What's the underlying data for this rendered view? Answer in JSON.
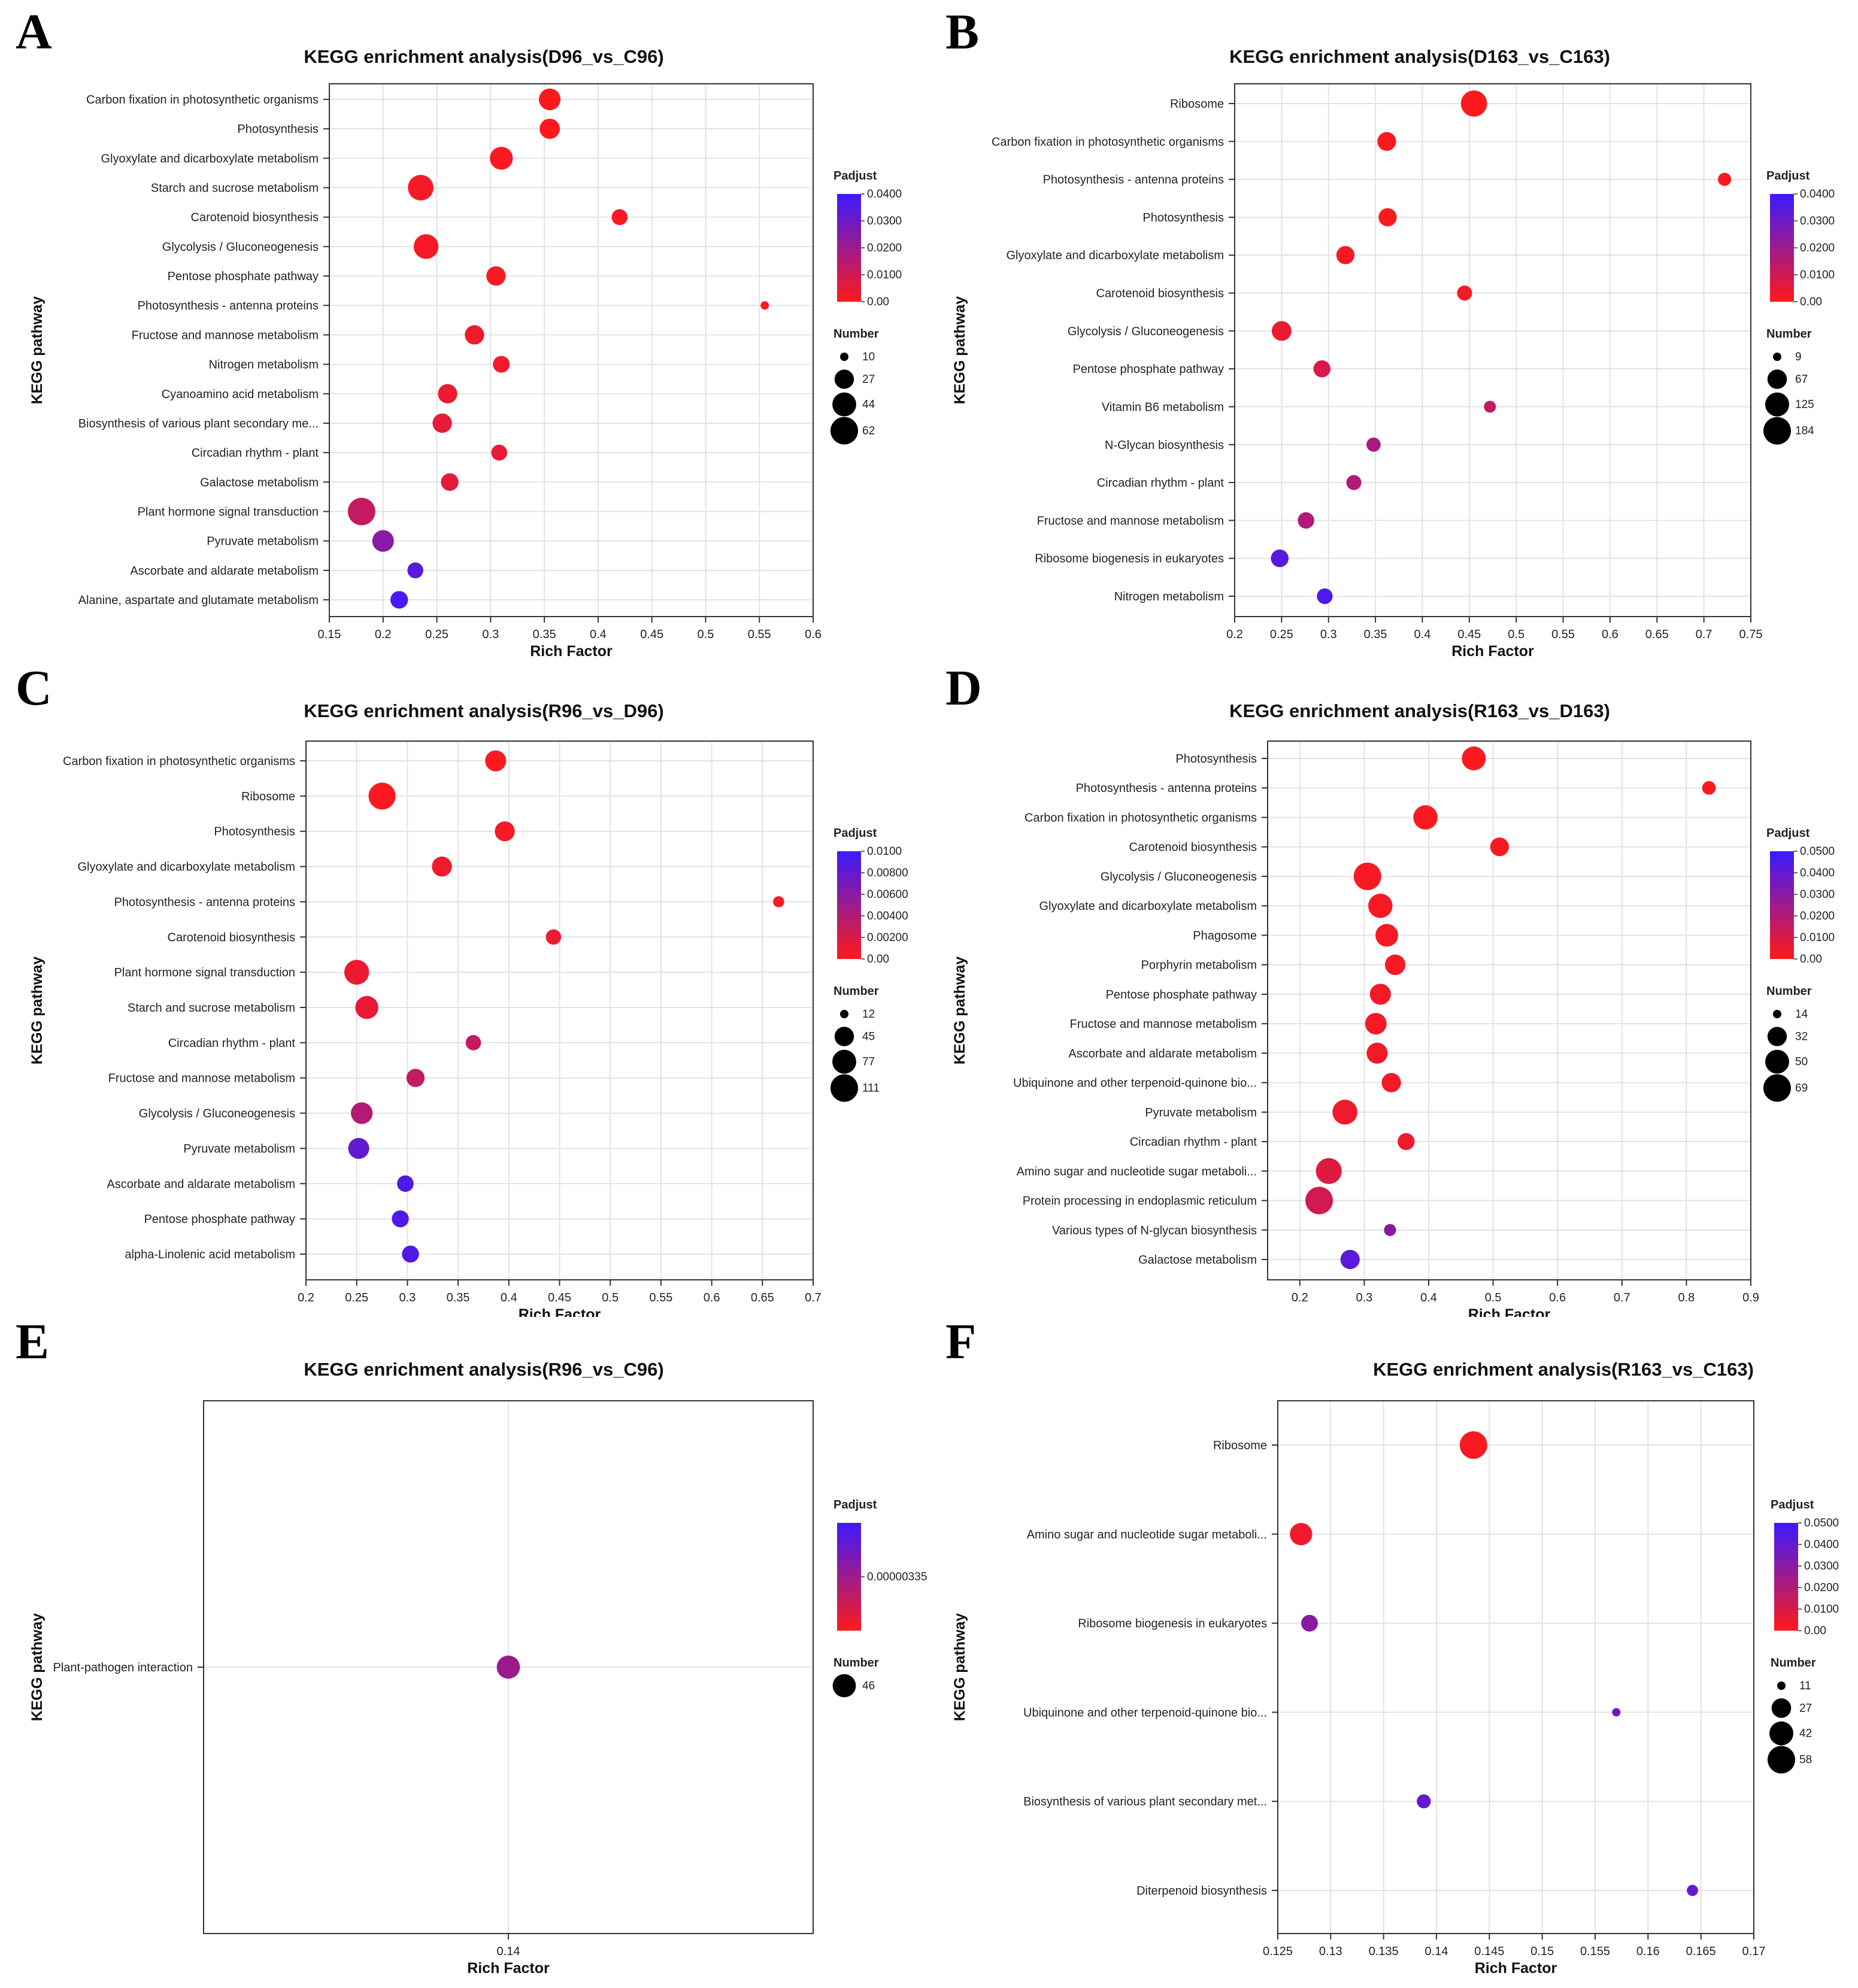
{
  "chart_data": [
    {
      "panel": "A",
      "type": "scatter",
      "title": "KEGG enrichment analysis(D96_vs_C96)",
      "xlabel": "Rich Factor",
      "ylabel": "KEGG pathway",
      "xlim": [
        0.15,
        0.6
      ],
      "xticks": [
        "0.15",
        "0.2",
        "0.25",
        "0.3",
        "0.35",
        "0.4",
        "0.45",
        "0.5",
        "0.55",
        "0.6"
      ],
      "grid": true,
      "legend_position": "right",
      "padjust_title": "Padjust",
      "padjust_ticks": [
        "0.0400",
        "0.0300",
        "0.0200",
        "0.0100",
        "0.00"
      ],
      "padjust_range": [
        0,
        0.04
      ],
      "number_title": "Number",
      "number_ticks": [
        "10",
        "27",
        "44",
        "62"
      ],
      "number_range": [
        10,
        62
      ],
      "points": [
        {
          "pathway": "Carbon fixation in photosynthetic organisms",
          "x": 0.355,
          "number": 35,
          "padjust": 0.0005
        },
        {
          "pathway": "Photosynthesis",
          "x": 0.355,
          "number": 30,
          "padjust": 0.0005
        },
        {
          "pathway": "Glyoxylate and dicarboxylate metabolism",
          "x": 0.31,
          "number": 40,
          "padjust": 0.001
        },
        {
          "pathway": "Starch and sucrose metabolism",
          "x": 0.235,
          "number": 52,
          "padjust": 0.002
        },
        {
          "pathway": "Carotenoid biosynthesis",
          "x": 0.42,
          "number": 18,
          "padjust": 0.001
        },
        {
          "pathway": "Glycolysis / Gluconeogenesis",
          "x": 0.24,
          "number": 48,
          "padjust": 0.002
        },
        {
          "pathway": "Pentose phosphate pathway",
          "x": 0.305,
          "number": 27,
          "padjust": 0.002
        },
        {
          "pathway": "Photosynthesis - antenna proteins",
          "x": 0.555,
          "number": 10,
          "padjust": 0.001
        },
        {
          "pathway": "Fructose and mannose metabolism",
          "x": 0.285,
          "number": 27,
          "padjust": 0.003
        },
        {
          "pathway": "Nitrogen metabolism",
          "x": 0.31,
          "number": 20,
          "padjust": 0.003
        },
        {
          "pathway": "Cyanoamino acid metabolism",
          "x": 0.26,
          "number": 27,
          "padjust": 0.004
        },
        {
          "pathway": "Biosynthesis of various plant secondary me...",
          "x": 0.255,
          "number": 27,
          "padjust": 0.005
        },
        {
          "pathway": "Circadian rhythm - plant",
          "x": 0.308,
          "number": 18,
          "padjust": 0.005
        },
        {
          "pathway": "Galactose metabolism",
          "x": 0.262,
          "number": 22,
          "padjust": 0.006
        },
        {
          "pathway": "Plant hormone signal transduction",
          "x": 0.18,
          "number": 62,
          "padjust": 0.012
        },
        {
          "pathway": "Pyruvate metabolism",
          "x": 0.2,
          "number": 35,
          "padjust": 0.024
        },
        {
          "pathway": "Ascorbate and aldarate metabolism",
          "x": 0.23,
          "number": 18,
          "padjust": 0.034
        },
        {
          "pathway": "Alanine, aspartate and glutamate metabolism",
          "x": 0.215,
          "number": 22,
          "padjust": 0.038
        }
      ]
    },
    {
      "panel": "B",
      "type": "scatter",
      "title": "KEGG enrichment analysis(D163_vs_C163)",
      "xlabel": "Rich Factor",
      "ylabel": "KEGG pathway",
      "xlim": [
        0.2,
        0.75
      ],
      "xticks": [
        "0.2",
        "0.25",
        "0.3",
        "0.35",
        "0.4",
        "0.45",
        "0.5",
        "0.55",
        "0.6",
        "0.65",
        "0.7",
        "0.75"
      ],
      "grid": true,
      "legend_position": "right",
      "padjust_title": "Padjust",
      "padjust_ticks": [
        "0.0400",
        "0.0300",
        "0.0200",
        "0.0100",
        "0.00"
      ],
      "padjust_range": [
        0,
        0.04
      ],
      "number_title": "Number",
      "number_ticks": [
        "9",
        "67",
        "125",
        "184"
      ],
      "number_range": [
        9,
        184
      ],
      "points": [
        {
          "pathway": "Ribosome",
          "x": 0.455,
          "number": 160,
          "padjust": 0.0005
        },
        {
          "pathway": "Carbon fixation in photosynthetic organisms",
          "x": 0.362,
          "number": 60,
          "padjust": 0.001
        },
        {
          "pathway": "Photosynthesis - antenna proteins",
          "x": 0.722,
          "number": 20,
          "padjust": 0.001
        },
        {
          "pathway": "Photosynthesis",
          "x": 0.363,
          "number": 55,
          "padjust": 0.001
        },
        {
          "pathway": "Glyoxylate and dicarboxylate metabolism",
          "x": 0.318,
          "number": 55,
          "padjust": 0.002
        },
        {
          "pathway": "Carotenoid biosynthesis",
          "x": 0.445,
          "number": 30,
          "padjust": 0.002
        },
        {
          "pathway": "Glycolysis / Gluconeogenesis",
          "x": 0.25,
          "number": 70,
          "padjust": 0.004
        },
        {
          "pathway": "Pentose phosphate pathway",
          "x": 0.293,
          "number": 45,
          "padjust": 0.008
        },
        {
          "pathway": "Vitamin B6 metabolism",
          "x": 0.472,
          "number": 15,
          "padjust": 0.013
        },
        {
          "pathway": "N-Glycan biosynthesis",
          "x": 0.348,
          "number": 25,
          "padjust": 0.018
        },
        {
          "pathway": "Circadian rhythm - plant",
          "x": 0.327,
          "number": 30,
          "padjust": 0.016
        },
        {
          "pathway": "Fructose and mannose metabolism",
          "x": 0.276,
          "number": 40,
          "padjust": 0.016
        },
        {
          "pathway": "Ribosome biogenesis in eukaryotes",
          "x": 0.248,
          "number": 50,
          "padjust": 0.034
        },
        {
          "pathway": "Nitrogen metabolism",
          "x": 0.296,
          "number": 35,
          "padjust": 0.036
        }
      ]
    },
    {
      "panel": "C",
      "type": "scatter",
      "title": "KEGG enrichment analysis(R96_vs_D96)",
      "xlabel": "Rich Factor",
      "ylabel": "KEGG pathway",
      "xlim": [
        0.2,
        0.7
      ],
      "xticks": [
        "0.2",
        "0.25",
        "0.3",
        "0.35",
        "0.4",
        "0.45",
        "0.5",
        "0.55",
        "0.6",
        "0.65",
        "0.7"
      ],
      "grid": true,
      "legend_position": "right",
      "padjust_title": "Padjust",
      "padjust_ticks": [
        "0.0100",
        "0.00800",
        "0.00600",
        "0.00400",
        "0.00200",
        "0.00"
      ],
      "padjust_range": [
        0,
        0.01
      ],
      "number_title": "Number",
      "number_ticks": [
        "12",
        "45",
        "77",
        "111"
      ],
      "number_range": [
        12,
        111
      ],
      "points": [
        {
          "pathway": "Carbon fixation in photosynthetic organisms",
          "x": 0.387,
          "number": 55,
          "padjust": 0.0002
        },
        {
          "pathway": "Ribosome",
          "x": 0.275,
          "number": 105,
          "padjust": 0.0002
        },
        {
          "pathway": "Photosynthesis",
          "x": 0.396,
          "number": 48,
          "padjust": 0.0005
        },
        {
          "pathway": "Glyoxylate and dicarboxylate metabolism",
          "x": 0.334,
          "number": 48,
          "padjust": 0.0008
        },
        {
          "pathway": "Photosynthesis - antenna proteins",
          "x": 0.666,
          "number": 14,
          "padjust": 0.0005
        },
        {
          "pathway": "Carotenoid biosynthesis",
          "x": 0.444,
          "number": 25,
          "padjust": 0.0008
        },
        {
          "pathway": "Plant hormone signal transduction",
          "x": 0.25,
          "number": 85,
          "padjust": 0.001
        },
        {
          "pathway": "Starch and sucrose metabolism",
          "x": 0.26,
          "number": 70,
          "padjust": 0.0012
        },
        {
          "pathway": "Circadian rhythm - plant",
          "x": 0.365,
          "number": 25,
          "padjust": 0.003
        },
        {
          "pathway": "Fructose and mannose metabolism",
          "x": 0.308,
          "number": 38,
          "padjust": 0.003
        },
        {
          "pathway": "Glycolysis / Gluconeogenesis",
          "x": 0.255,
          "number": 60,
          "padjust": 0.004
        },
        {
          "pathway": "Pyruvate metabolism",
          "x": 0.252,
          "number": 55,
          "padjust": 0.008
        },
        {
          "pathway": "Ascorbate and aldarate metabolism",
          "x": 0.298,
          "number": 30,
          "padjust": 0.009
        },
        {
          "pathway": "Pentose phosphate pathway",
          "x": 0.293,
          "number": 32,
          "padjust": 0.009
        },
        {
          "pathway": "alpha-Linolenic acid metabolism",
          "x": 0.303,
          "number": 32,
          "padjust": 0.009
        }
      ]
    },
    {
      "panel": "D",
      "type": "scatter",
      "title": "KEGG enrichment analysis(R163_vs_D163)",
      "xlabel": "Rich Factor",
      "ylabel": "KEGG pathway",
      "xlim": [
        0.15,
        0.9
      ],
      "xticks": [
        "0.2",
        "0.3",
        "0.4",
        "0.5",
        "0.6",
        "0.7",
        "0.8",
        "0.9"
      ],
      "grid": true,
      "legend_position": "right",
      "padjust_title": "Padjust",
      "padjust_ticks": [
        "0.0500",
        "0.0400",
        "0.0300",
        "0.0200",
        "0.0100",
        "0.00"
      ],
      "padjust_range": [
        0,
        0.05
      ],
      "number_title": "Number",
      "number_ticks": [
        "14",
        "32",
        "50",
        "69"
      ],
      "number_range": [
        14,
        69
      ],
      "points": [
        {
          "pathway": "Photosynthesis",
          "x": 0.47,
          "number": 50,
          "padjust": 0.001
        },
        {
          "pathway": "Photosynthesis - antenna proteins",
          "x": 0.835,
          "number": 18,
          "padjust": 0.001
        },
        {
          "pathway": "Carbon fixation in photosynthetic organisms",
          "x": 0.395,
          "number": 52,
          "padjust": 0.001
        },
        {
          "pathway": "Carotenoid biosynthesis",
          "x": 0.51,
          "number": 30,
          "padjust": 0.002
        },
        {
          "pathway": "Glycolysis / Gluconeogenesis",
          "x": 0.305,
          "number": 69,
          "padjust": 0.002
        },
        {
          "pathway": "Glyoxylate and dicarboxylate metabolism",
          "x": 0.325,
          "number": 52,
          "padjust": 0.002
        },
        {
          "pathway": "Phagosome",
          "x": 0.335,
          "number": 45,
          "padjust": 0.002
        },
        {
          "pathway": "Porphyrin metabolism",
          "x": 0.348,
          "number": 36,
          "padjust": 0.002
        },
        {
          "pathway": "Pentose phosphate pathway",
          "x": 0.325,
          "number": 38,
          "padjust": 0.003
        },
        {
          "pathway": "Fructose and mannose metabolism",
          "x": 0.318,
          "number": 40,
          "padjust": 0.003
        },
        {
          "pathway": "Ascorbate and aldarate metabolism",
          "x": 0.32,
          "number": 38,
          "padjust": 0.003
        },
        {
          "pathway": "Ubiquinone and other terpenoid-quinone bio...",
          "x": 0.342,
          "number": 32,
          "padjust": 0.003
        },
        {
          "pathway": "Pyruvate metabolism",
          "x": 0.27,
          "number": 55,
          "padjust": 0.004
        },
        {
          "pathway": "Circadian rhythm - plant",
          "x": 0.365,
          "number": 25,
          "padjust": 0.004
        },
        {
          "pathway": "Amino sugar and nucleotide sugar metaboli...",
          "x": 0.245,
          "number": 60,
          "padjust": 0.008
        },
        {
          "pathway": "Protein processing in endoplasmic reticulum",
          "x": 0.23,
          "number": 69,
          "padjust": 0.012
        },
        {
          "pathway": "Various types of N-glycan biosynthesis",
          "x": 0.34,
          "number": 16,
          "padjust": 0.03
        },
        {
          "pathway": "Galactose metabolism",
          "x": 0.278,
          "number": 32,
          "padjust": 0.042
        }
      ]
    },
    {
      "panel": "E",
      "type": "scatter",
      "title": "KEGG enrichment analysis(R96_vs_C96)",
      "xlabel": "Rich Factor",
      "ylabel": "KEGG pathway",
      "xlim": [
        0.13,
        0.15
      ],
      "xticks": [
        "0.14"
      ],
      "grid": true,
      "legend_position": "right",
      "padjust_title": "Padjust",
      "padjust_ticks": [
        "0.00000335"
      ],
      "padjust_range": [
        0,
        1
      ],
      "number_title": "Number",
      "number_ticks": [
        "46"
      ],
      "number_range": [
        46,
        46
      ],
      "points": [
        {
          "pathway": "Plant-pathogen interaction",
          "x": 0.14,
          "number": 46,
          "padjust": 0.5
        }
      ]
    },
    {
      "panel": "F",
      "type": "scatter",
      "title": "KEGG enrichment analysis(R163_vs_C163)",
      "xlabel": "Rich Factor",
      "ylabel": "KEGG pathway",
      "xlim": [
        0.125,
        0.17
      ],
      "xticks": [
        "0.125",
        "0.13",
        "0.135",
        "0.14",
        "0.145",
        "0.15",
        "0.155",
        "0.16",
        "0.165",
        "0.17"
      ],
      "grid": true,
      "legend_position": "right",
      "padjust_title": "Padjust",
      "padjust_ticks": [
        "0.0500",
        "0.0400",
        "0.0300",
        "0.0200",
        "0.0100",
        "0.00"
      ],
      "padjust_range": [
        0,
        0.05
      ],
      "number_title": "Number",
      "number_ticks": [
        "11",
        "27",
        "42",
        "58"
      ],
      "number_range": [
        11,
        58
      ],
      "points": [
        {
          "pathway": "Ribosome",
          "x": 0.1435,
          "number": 58,
          "padjust": 0.002
        },
        {
          "pathway": "Amino sugar and nucleotide sugar metaboli...",
          "x": 0.1272,
          "number": 36,
          "padjust": 0.004
        },
        {
          "pathway": "Ribosome biogenesis in eukaryotes",
          "x": 0.128,
          "number": 20,
          "padjust": 0.03
        },
        {
          "pathway": "Ubiquinone and other terpenoid-quinone bio...",
          "x": 0.157,
          "number": 11,
          "padjust": 0.037
        },
        {
          "pathway": "Biosynthesis of various plant secondary met...",
          "x": 0.1388,
          "number": 15,
          "padjust": 0.04
        },
        {
          "pathway": "Diterpenoid biosynthesis",
          "x": 0.1642,
          "number": 12,
          "padjust": 0.04
        }
      ]
    }
  ],
  "colors": {
    "low": "#ff1a1a",
    "high": "#3b1aff",
    "grid": "#e3e3e3",
    "axis": "#222222"
  }
}
